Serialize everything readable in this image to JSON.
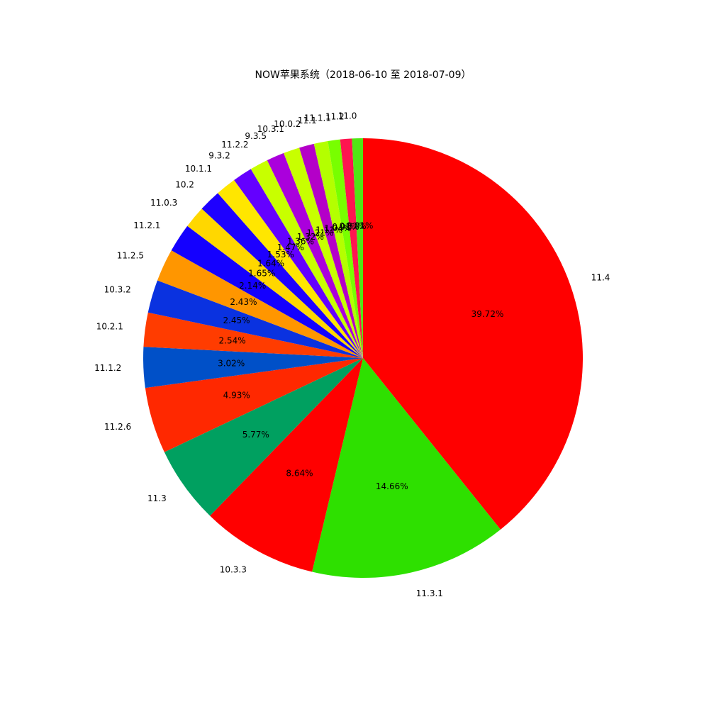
{
  "chart_data": {
    "type": "pie",
    "title": "NOW苹果系统（2018-06-10 至 2018-07-09）",
    "start_angle_deg": 90,
    "direction": "clockwise",
    "slices": [
      {
        "label": "11.4",
        "value": 39.72,
        "pct_label": "39.72%",
        "color": "#ff0000"
      },
      {
        "label": "11.3.1",
        "value": 14.66,
        "pct_label": "14.66%",
        "color": "#2ee000"
      },
      {
        "label": "10.3.3",
        "value": 8.64,
        "pct_label": "8.64%",
        "color": "#ff0000"
      },
      {
        "label": "11.3",
        "value": 5.77,
        "pct_label": "5.77%",
        "color": "#00a060"
      },
      {
        "label": "11.2.6",
        "value": 4.93,
        "pct_label": "4.93%",
        "color": "#ff2800"
      },
      {
        "label": "11.1.2",
        "value": 3.02,
        "pct_label": "3.02%",
        "color": "#0050c8"
      },
      {
        "label": "10.2.1",
        "value": 2.54,
        "pct_label": "2.54%",
        "color": "#ff3c00"
      },
      {
        "label": "10.3.2",
        "value": 2.45,
        "pct_label": "2.45%",
        "color": "#0a32e0"
      },
      {
        "label": "11.2.5",
        "value": 2.43,
        "pct_label": "2.43%",
        "color": "#ff9600"
      },
      {
        "label": "11.2.1",
        "value": 2.14,
        "pct_label": "2.14%",
        "color": "#1400ff"
      },
      {
        "label": "11.0.3",
        "value": 1.65,
        "pct_label": "1.65%",
        "color": "#ffd700"
      },
      {
        "label": "10.2",
        "value": 1.64,
        "pct_label": "1.64%",
        "color": "#1e00ff"
      },
      {
        "label": "10.1.1",
        "value": 1.53,
        "pct_label": "1.53%",
        "color": "#ffe600"
      },
      {
        "label": "9.3.2",
        "value": 1.47,
        "pct_label": "1.47%",
        "color": "#6400ff"
      },
      {
        "label": "11.2.2",
        "value": 1.36,
        "pct_label": "1.36%",
        "color": "#c8ff00"
      },
      {
        "label": "9.3.5",
        "value": 1.32,
        "pct_label": "1.32%",
        "color": "#aa00dc"
      },
      {
        "label": "10.3.1",
        "value": 1.21,
        "pct_label": "1.21%",
        "color": "#c8ff00"
      },
      {
        "label": "10.0.2",
        "value": 1.11,
        "pct_label": "1.11%",
        "color": "#b400c8"
      },
      {
        "label": "11.1",
        "value": 1.04,
        "pct_label": "1.04%",
        "color": "#b4ff00"
      },
      {
        "label": "11.1.1",
        "value": 0.91,
        "pct_label": "0.91%",
        "color": "#78ff00"
      },
      {
        "label": "11.2",
        "value": 0.87,
        "pct_label": "0.87%",
        "color": "#ff1450"
      },
      {
        "label": "11.0",
        "value": 0.81,
        "pct_label": "0.81%",
        "color": "#50e614"
      }
    ]
  }
}
